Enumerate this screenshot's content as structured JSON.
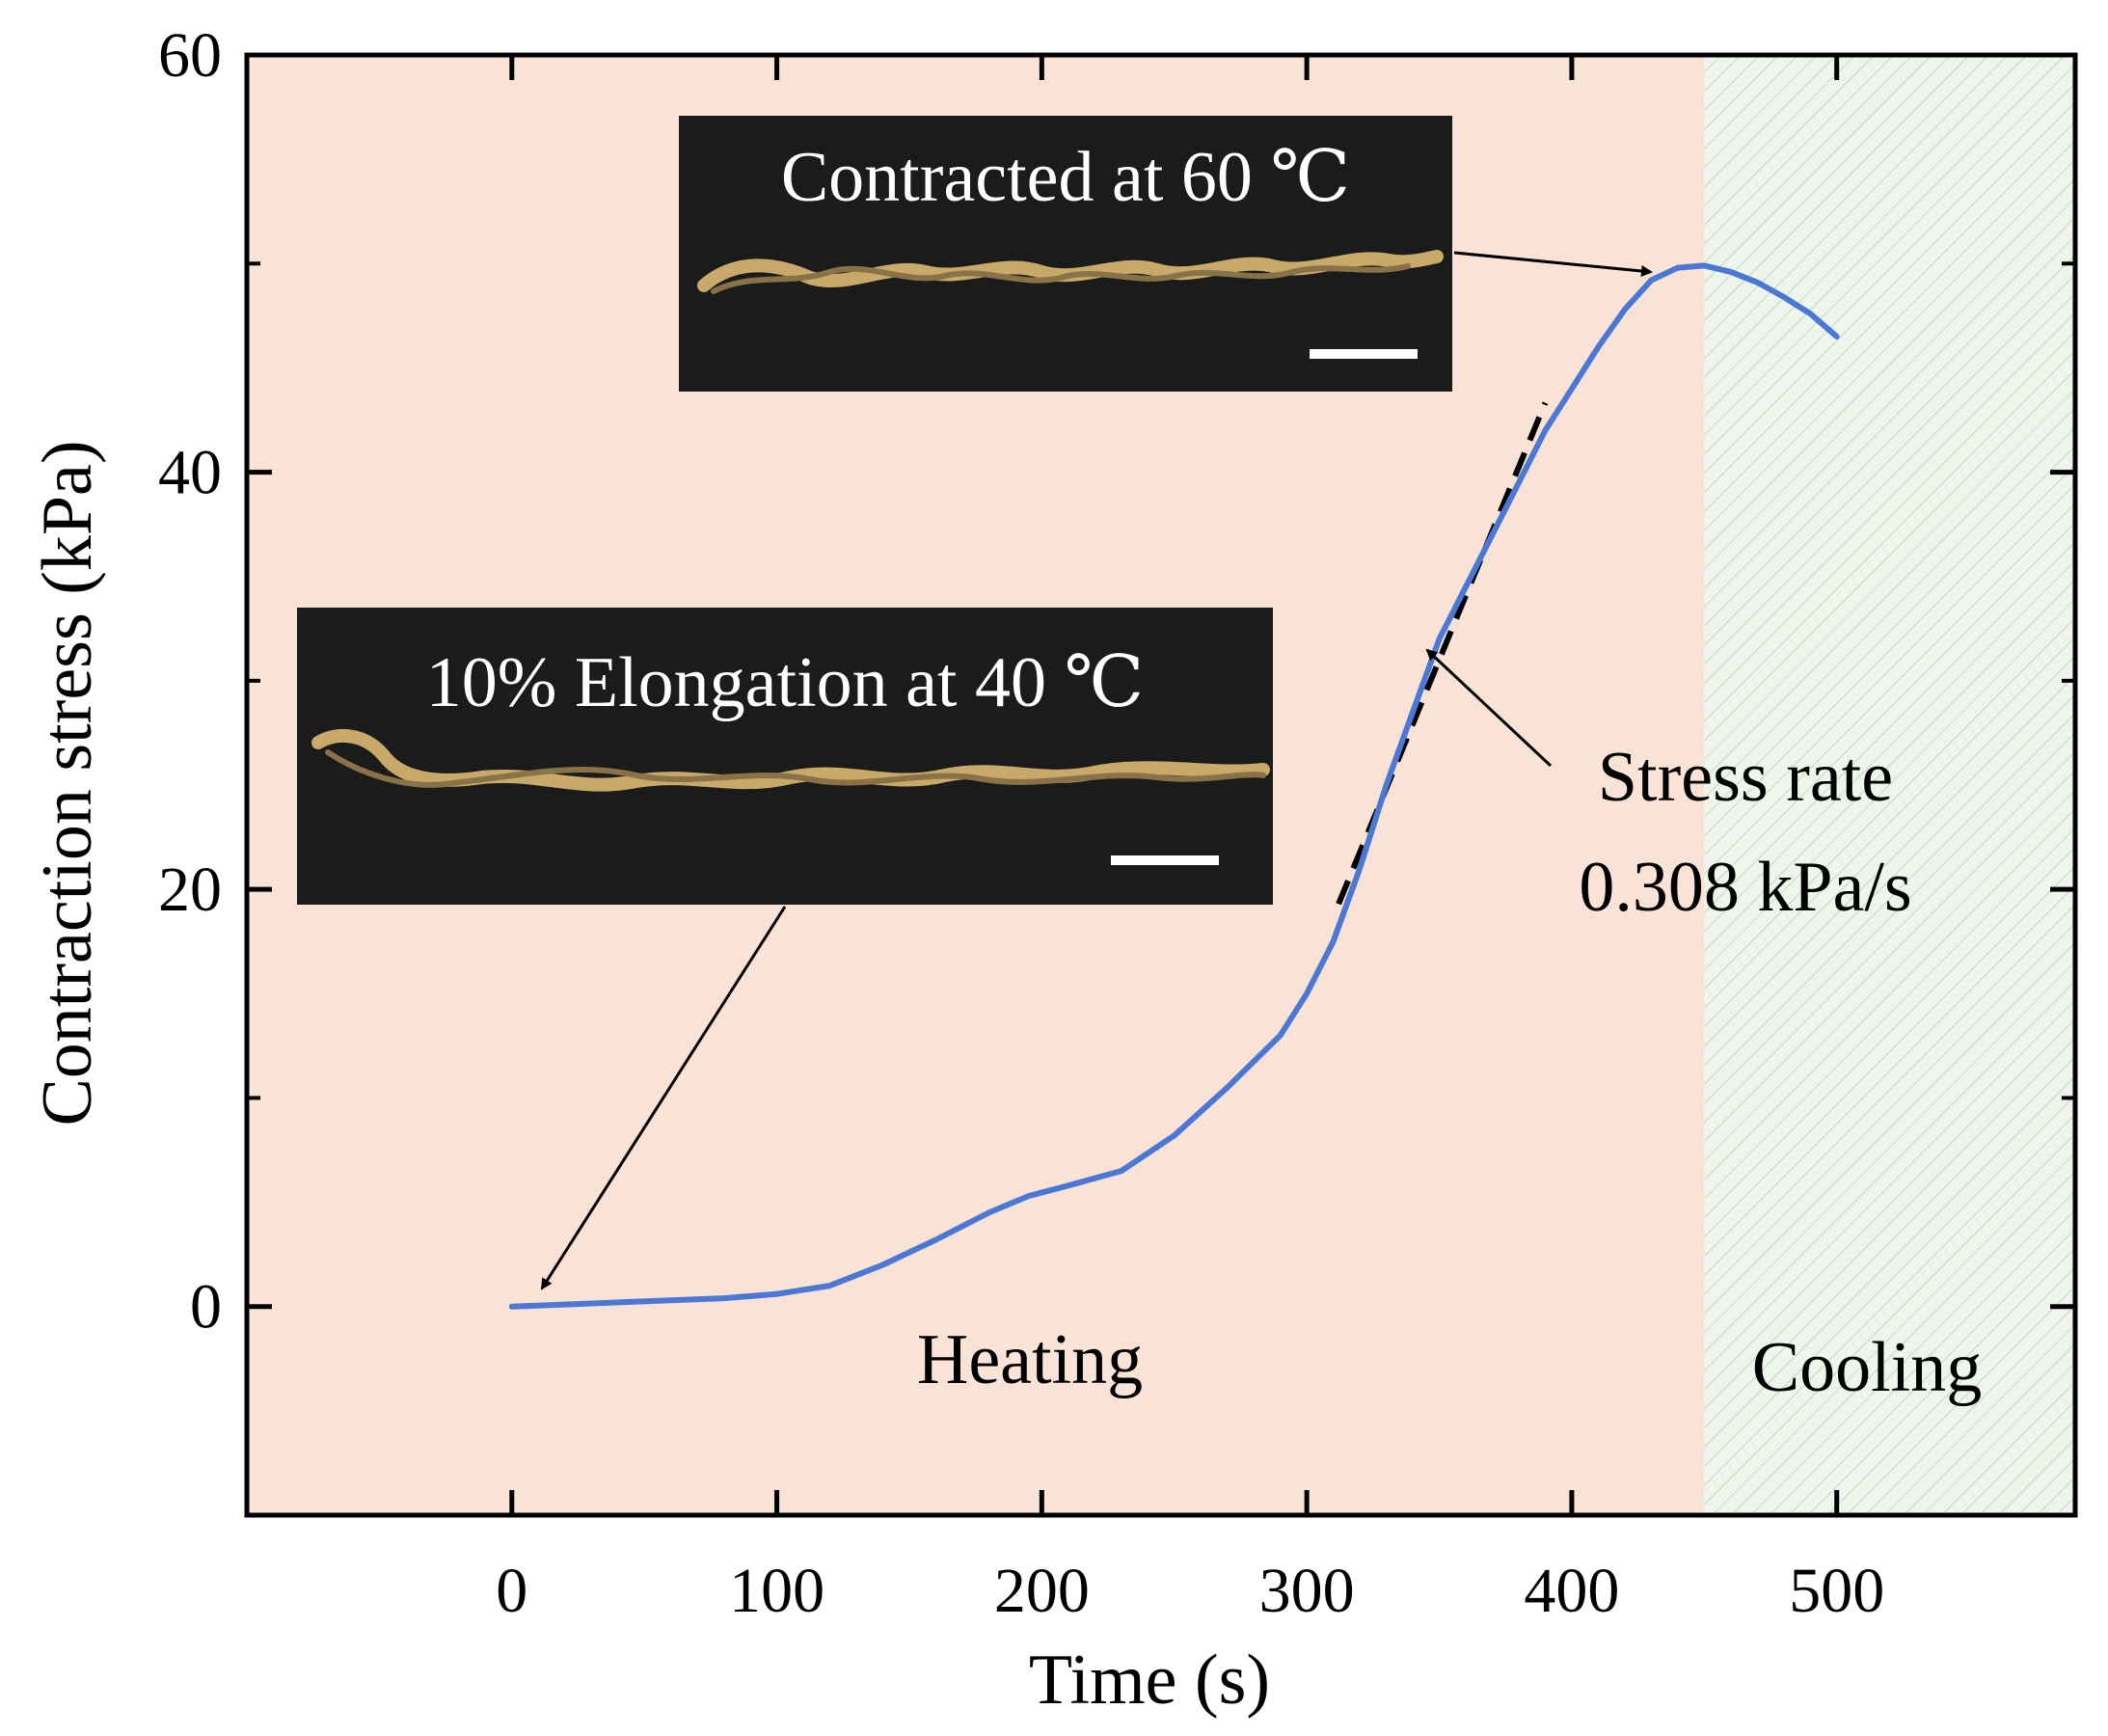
{
  "chart_data": {
    "type": "line",
    "title": "",
    "xlabel": "Time (s)",
    "ylabel": "Contraction stress (kPa)",
    "xlim": [
      -100,
      590
    ],
    "ylim": [
      -10,
      60
    ],
    "xticks": [
      0,
      100,
      200,
      300,
      400,
      500
    ],
    "yticks": [
      0,
      20,
      40,
      60
    ],
    "grid": false,
    "series": [
      {
        "color": "#4a78d4",
        "x": [
          0,
          20,
          40,
          60,
          80,
          100,
          120,
          140,
          160,
          180,
          195,
          210,
          230,
          250,
          270,
          290,
          300,
          310,
          320,
          330,
          340,
          350,
          360,
          370,
          380,
          390,
          400,
          410,
          420,
          430,
          440,
          450,
          460,
          470,
          480,
          490,
          500
        ],
        "y": [
          0,
          0.1,
          0.2,
          0.3,
          0.4,
          0.6,
          1.0,
          2.0,
          3.2,
          4.5,
          5.3,
          5.8,
          6.5,
          8.2,
          10.5,
          13.0,
          15.0,
          17.5,
          21.0,
          25.0,
          28.5,
          32.0,
          34.5,
          37.0,
          39.5,
          42.0,
          44.0,
          46.0,
          47.8,
          49.2,
          49.8,
          49.9,
          49.6,
          49.1,
          48.4,
          47.6,
          46.5
        ]
      }
    ],
    "shaded_regions": [
      {
        "label": "Heating",
        "x_start": -100,
        "x_end": 450,
        "color": "#f9e2d6"
      },
      {
        "label": "Cooling",
        "x_start": 450,
        "x_end": 590,
        "color": "#eef5ec"
      }
    ],
    "annotations": {
      "stress_rate": {
        "line1": "Stress rate",
        "line2": "0.308 kPa/s",
        "slope_kpa_per_s": 0.308
      },
      "inset_contracted": {
        "title": "Contracted at 60 ℃"
      },
      "inset_elongation": {
        "title": "10% Elongation at 40 ℃"
      }
    }
  }
}
